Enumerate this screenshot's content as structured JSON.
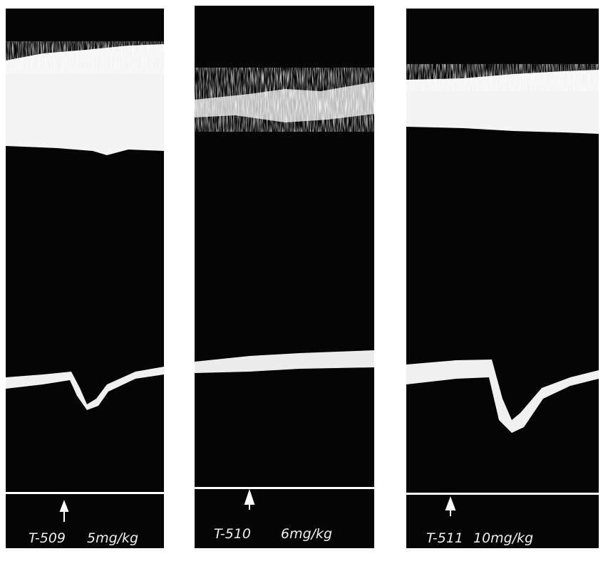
{
  "panels": [
    {
      "id": "T-509",
      "dose": "5mg/kg"
    },
    {
      "id": "T-510",
      "dose": "6mg/kg"
    },
    {
      "id": "T-511",
      "dose": "10mg/kg"
    }
  ]
}
